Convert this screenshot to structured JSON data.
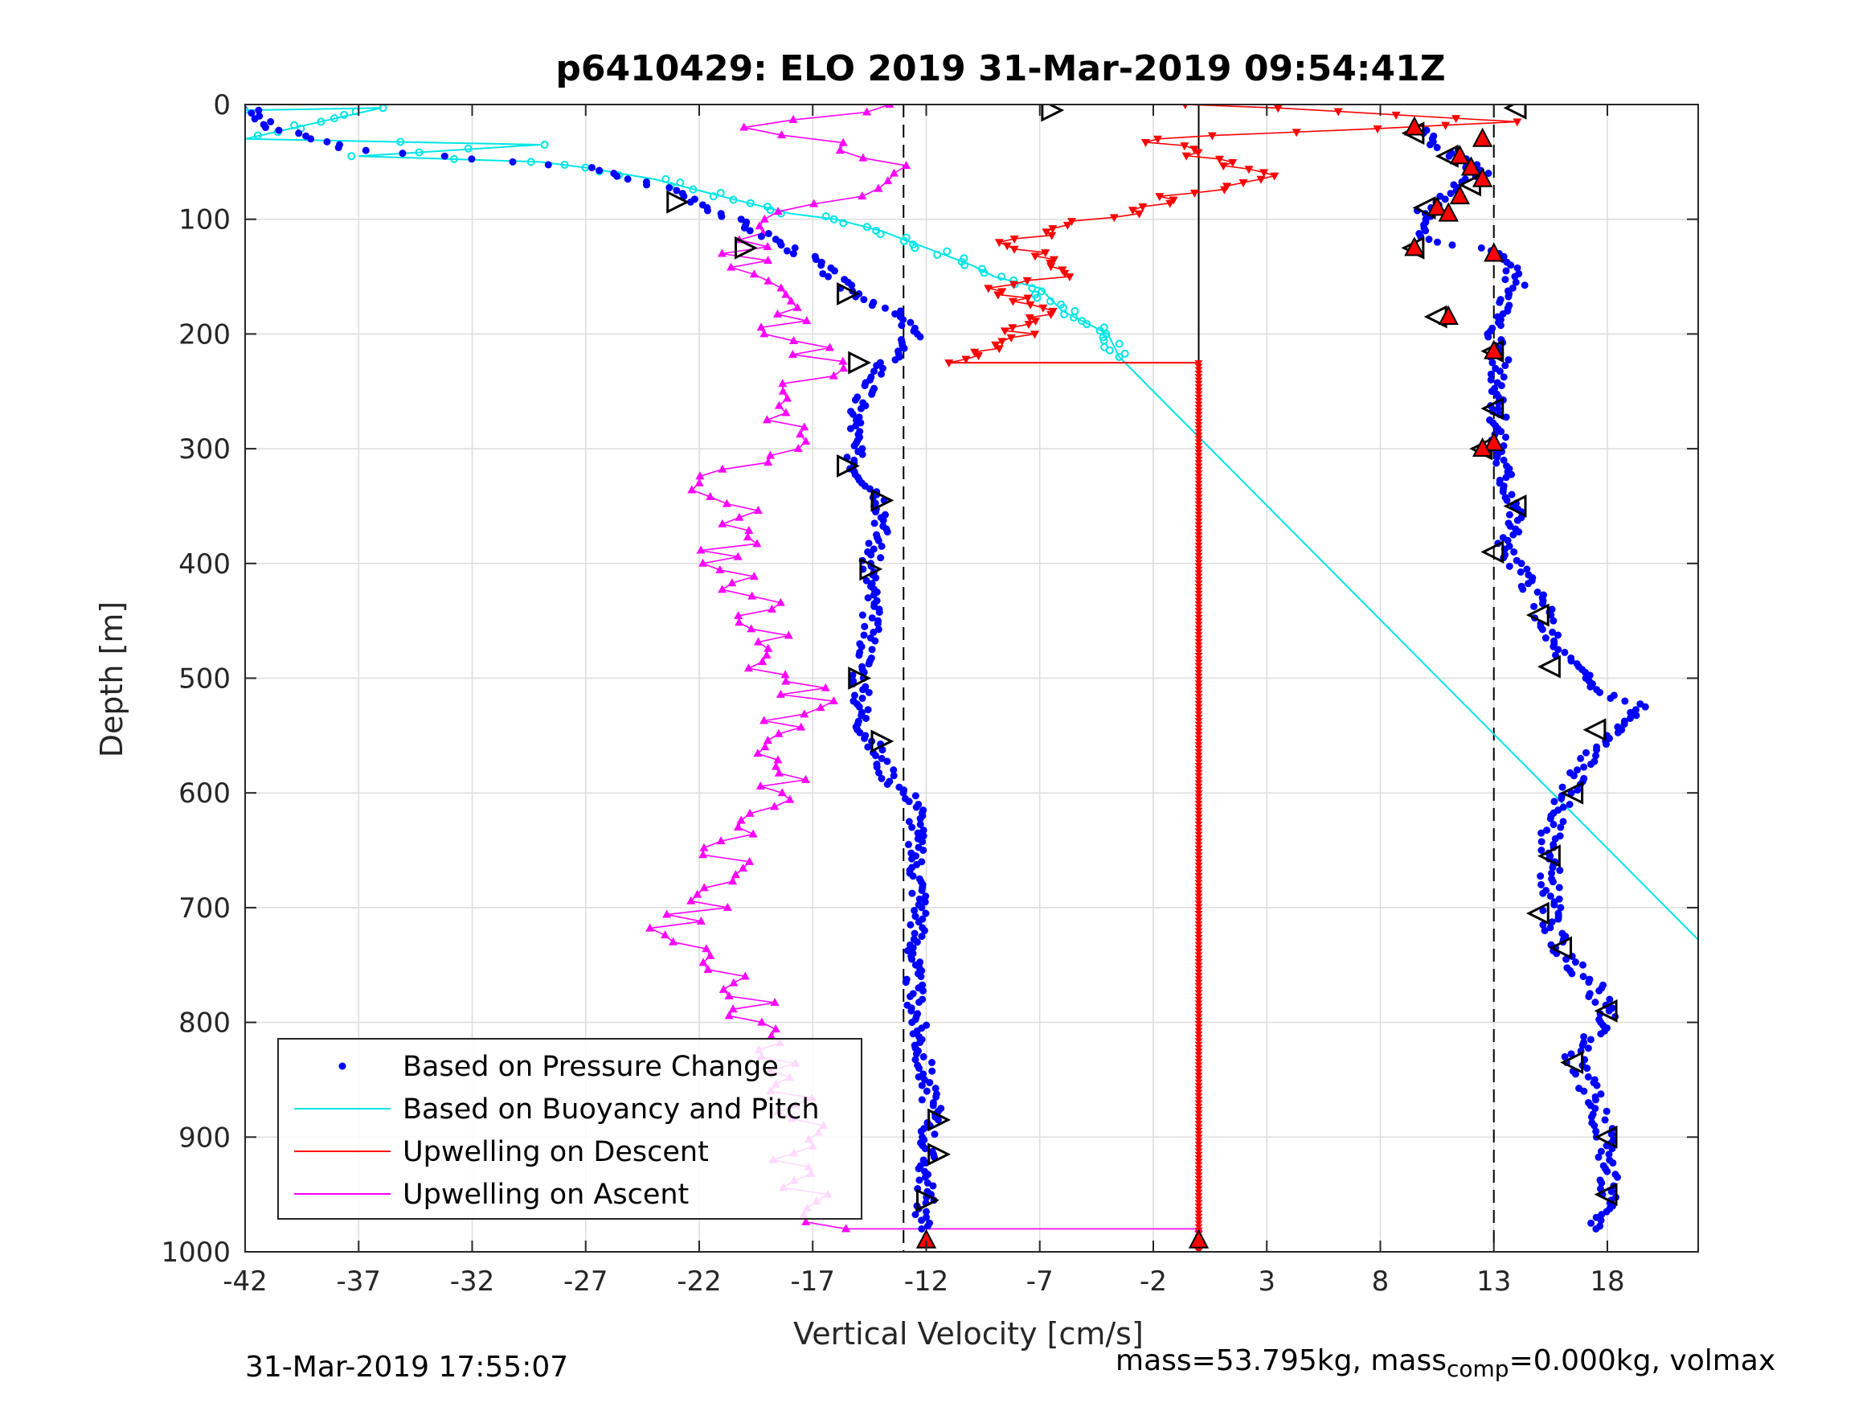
{
  "chart_data": {
    "type": "scatter",
    "title": "p6410429: ELO 2019 31-Mar-2019 09:54:41Z",
    "xlabel": "Vertical Velocity [cm/s]",
    "ylabel": "Depth [m]",
    "xlim": [
      -42,
      22
    ],
    "ylim": [
      0,
      1000
    ],
    "y_reversed": true,
    "grid": true,
    "legend_position": "bottom-left",
    "xticks": [
      -42,
      -37,
      -32,
      -27,
      -22,
      -17,
      -12,
      -7,
      -2,
      3,
      8,
      13,
      18
    ],
    "xtick_labels": [
      "-42",
      "-37",
      "-32",
      "-27",
      "-22",
      "-17",
      "-12",
      "-7",
      "-2",
      "3",
      "8",
      "13",
      "18"
    ],
    "yticks": [
      0,
      100,
      200,
      300,
      400,
      500,
      600,
      700,
      800,
      900,
      1000
    ],
    "ytick_labels": [
      "0",
      "100",
      "200",
      "300",
      "400",
      "500",
      "600",
      "700",
      "800",
      "900",
      "1000"
    ],
    "reference_lines": {
      "dashed_x": [
        -13,
        13
      ],
      "solid_x": [
        0
      ]
    },
    "series": [
      {
        "name": "Based on Pressure Change",
        "color": "#0000ff",
        "marker": "dot",
        "descent_profile": [
          [
            -42,
            0
          ],
          [
            -41,
            20
          ],
          [
            -37,
            40
          ],
          [
            -30,
            50
          ],
          [
            -27,
            55
          ],
          [
            -23,
            75
          ],
          [
            -21,
            95
          ],
          [
            -19,
            115
          ],
          [
            -17,
            135
          ],
          [
            -15.5,
            160
          ],
          [
            -13.5,
            180
          ],
          [
            -12.5,
            200
          ],
          [
            -14,
            230
          ],
          [
            -15,
            260
          ],
          [
            -15.2,
            300
          ],
          [
            -15,
            320
          ],
          [
            -14,
            340
          ],
          [
            -13.8,
            360
          ],
          [
            -14.5,
            400
          ],
          [
            -14.4,
            440
          ],
          [
            -14.6,
            480
          ],
          [
            -14.9,
            500
          ],
          [
            -14.8,
            540
          ],
          [
            -14.3,
            560
          ],
          [
            -13.5,
            590
          ],
          [
            -12.3,
            610
          ],
          [
            -12.5,
            650
          ],
          [
            -12.2,
            700
          ],
          [
            -12.6,
            750
          ],
          [
            -12.4,
            800
          ],
          [
            -12,
            850
          ],
          [
            -11.7,
            880
          ],
          [
            -12,
            910
          ],
          [
            -12,
            950
          ],
          [
            -12.2,
            980
          ]
        ],
        "ascent_profile": [
          [
            9.5,
            20
          ],
          [
            11,
            40
          ],
          [
            12.5,
            60
          ],
          [
            11,
            75
          ],
          [
            10,
            90
          ],
          [
            9.5,
            115
          ],
          [
            13.5,
            130
          ],
          [
            14,
            160
          ],
          [
            13,
            190
          ],
          [
            13.2,
            220
          ],
          [
            13.3,
            260
          ],
          [
            13.1,
            290
          ],
          [
            13.5,
            330
          ],
          [
            14,
            350
          ],
          [
            13.5,
            390
          ],
          [
            15,
            430
          ],
          [
            15.5,
            470
          ],
          [
            17.5,
            510
          ],
          [
            19.5,
            525
          ],
          [
            17.5,
            560
          ],
          [
            16.5,
            590
          ],
          [
            15.5,
            630
          ],
          [
            15.5,
            670
          ],
          [
            15.5,
            710
          ],
          [
            16,
            740
          ],
          [
            17.5,
            770
          ],
          [
            18,
            800
          ],
          [
            16.5,
            830
          ],
          [
            17.5,
            870
          ],
          [
            18,
            910
          ],
          [
            18,
            950
          ],
          [
            17.5,
            980
          ]
        ]
      },
      {
        "name": "Based on Buoyancy and Pitch",
        "color": "#00e5e5",
        "marker": "circle",
        "profile": [
          [
            -42,
            5
          ],
          [
            -36,
            3
          ],
          [
            -42,
            30
          ],
          [
            -29,
            35
          ],
          [
            -37,
            45
          ],
          [
            -29,
            50
          ],
          [
            -27,
            55
          ],
          [
            -24,
            65
          ],
          [
            -21,
            80
          ],
          [
            -18,
            95
          ],
          [
            -16,
            100
          ],
          [
            -14,
            110
          ],
          [
            -12,
            125
          ],
          [
            -10,
            140
          ],
          [
            -9,
            150
          ],
          [
            -7,
            160
          ],
          [
            -6,
            180
          ],
          [
            -4,
            200
          ],
          [
            -3.5,
            220
          ],
          [
            22,
            728
          ]
        ]
      },
      {
        "name": "Upwelling on Descent",
        "color": "#ff0000",
        "marker": "triangle-down",
        "profile": [
          [
            0,
            0
          ],
          [
            14,
            15
          ],
          [
            -2,
            30
          ],
          [
            3,
            65
          ],
          [
            -1,
            80
          ],
          [
            -3,
            95
          ],
          [
            -6,
            105
          ],
          [
            -8,
            120
          ],
          [
            -6,
            150
          ],
          [
            -9,
            160
          ],
          [
            -7,
            180
          ],
          [
            -8,
            200
          ],
          [
            -11,
            225
          ],
          [
            0,
            225
          ],
          [
            0,
            1000
          ]
        ]
      },
      {
        "name": "Upwelling on Ascent",
        "color": "#ff00ff",
        "marker": "triangle-up",
        "profile": [
          [
            -14,
            0
          ],
          [
            -19,
            20
          ],
          [
            -15,
            40
          ],
          [
            -13,
            60
          ],
          [
            -16,
            80
          ],
          [
            -19,
            100
          ],
          [
            -20,
            130
          ],
          [
            -18.5,
            160
          ],
          [
            -18,
            200
          ],
          [
            -16,
            230
          ],
          [
            -19,
            250
          ],
          [
            -18,
            300
          ],
          [
            -22,
            330
          ],
          [
            -20,
            360
          ],
          [
            -21,
            400
          ],
          [
            -19,
            440
          ],
          [
            -19.5,
            480
          ],
          [
            -17,
            520
          ],
          [
            -19.5,
            560
          ],
          [
            -18,
            600
          ],
          [
            -20,
            630
          ],
          [
            -21,
            660
          ],
          [
            -22,
            700
          ],
          [
            -23.5,
            730
          ],
          [
            -20,
            760
          ],
          [
            -19.5,
            800
          ],
          [
            -19,
            830
          ],
          [
            -18,
            860
          ],
          [
            -17.5,
            890
          ],
          [
            -18,
            920
          ],
          [
            -17,
            950
          ],
          [
            -16,
            980
          ],
          [
            0,
            980
          ]
        ]
      }
    ],
    "annotation_markers": {
      "open_triangles_descent": [
        [
          -6.5,
          5
        ],
        [
          -23,
          85
        ],
        [
          -20,
          125
        ],
        [
          -15.5,
          165
        ],
        [
          -15,
          225
        ],
        [
          -15.5,
          315
        ],
        [
          -14,
          345
        ],
        [
          -14.5,
          405
        ],
        [
          -15,
          500
        ],
        [
          -14,
          555
        ],
        [
          -11.5,
          885
        ],
        [
          -11.5,
          915
        ],
        [
          -12,
          955
        ]
      ],
      "open_triangles_ascent": [
        [
          14,
          3
        ],
        [
          9.5,
          25
        ],
        [
          11,
          45
        ],
        [
          12,
          70
        ],
        [
          10,
          90
        ],
        [
          9.5,
          125
        ],
        [
          10.5,
          185
        ],
        [
          13,
          215
        ],
        [
          13,
          265
        ],
        [
          12.5,
          300
        ],
        [
          14,
          350
        ],
        [
          13,
          390
        ],
        [
          15,
          445
        ],
        [
          15.5,
          490
        ],
        [
          17.5,
          545
        ],
        [
          16.5,
          600
        ],
        [
          15.5,
          655
        ],
        [
          15,
          705
        ],
        [
          16,
          735
        ],
        [
          18,
          790
        ],
        [
          16.5,
          835
        ],
        [
          18,
          900
        ],
        [
          18,
          950
        ]
      ],
      "red_filled_triangles": [
        [
          9.5,
          20
        ],
        [
          12.5,
          30
        ],
        [
          11.5,
          45
        ],
        [
          12,
          55
        ],
        [
          12.5,
          65
        ],
        [
          11.5,
          80
        ],
        [
          10.5,
          90
        ],
        [
          11,
          95
        ],
        [
          13,
          130
        ],
        [
          9.5,
          125
        ],
        [
          11,
          185
        ],
        [
          13,
          215
        ],
        [
          13,
          295
        ],
        [
          12.5,
          300
        ],
        [
          -12,
          990
        ],
        [
          0,
          990
        ]
      ]
    },
    "legend": [
      "Based on Pressure Change",
      "Based on Buoyancy and Pitch",
      "Upwelling on Descent",
      "Upwelling on Ascent"
    ]
  },
  "footer": {
    "timestamp": "31-Mar-2019 17:55:07",
    "mass_text": "mass=53.795kg, mass",
    "mass_sub": "comp",
    "mass_tail": "=0.000kg, volmax"
  }
}
